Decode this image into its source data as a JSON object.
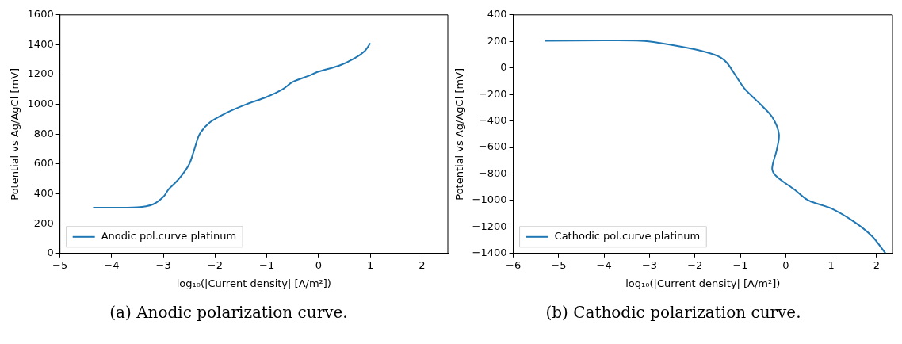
{
  "chart_data": [
    {
      "type": "line",
      "xlabel": "log₁₀(|Current density| [A/m²])",
      "ylabel": "Potential vs Ag/AgCl [mV]",
      "annotations": [
        "(a) Anodic polarization curve."
      ],
      "xlim": [
        -5,
        2.5
      ],
      "xticks": [
        -5,
        -4,
        -3,
        -2,
        -1,
        0,
        1,
        2
      ],
      "ylim": [
        0,
        1600
      ],
      "yticks": [
        0,
        200,
        400,
        600,
        800,
        1000,
        1200,
        1400,
        1600
      ],
      "grid": false,
      "legend": "bottom left",
      "marker": "none",
      "series": [
        {
          "name": "Anodic pol.curve platinum",
          "color": "#1f77b4",
          "x": [
            -4.36,
            -3.5,
            -3.2,
            -3.0,
            -2.9,
            -2.7,
            -2.5,
            -2.4,
            -2.3,
            -2.1,
            -1.8,
            -1.4,
            -1.0,
            -0.7,
            -0.5,
            -0.2,
            0,
            0.4,
            0.7,
            0.9,
            1.0
          ],
          "values": [
            307,
            310,
            330,
            380,
            430,
            500,
            600,
            700,
            800,
            880,
            940,
            1000,
            1050,
            1100,
            1150,
            1190,
            1220,
            1260,
            1310,
            1360,
            1410
          ]
        }
      ]
    },
    {
      "type": "line",
      "xlabel": "log₁₀(|Current density| [A/m²])",
      "ylabel": "Potential vs Ag/AgCl [mV]",
      "annotations": [
        "(b) Cathodic polarization curve."
      ],
      "xlim": [
        -6,
        2.35
      ],
      "xticks": [
        -6,
        -5,
        -4,
        -3,
        -2,
        -1,
        0,
        1,
        2
      ],
      "ylim": [
        -1400,
        400
      ],
      "yticks": [
        -1400,
        -1200,
        -1000,
        -800,
        -600,
        -400,
        -200,
        0,
        200,
        400
      ],
      "grid": false,
      "legend": "bottom left",
      "marker": "none",
      "series": [
        {
          "name": "Cathodic pol.curve platinum",
          "color": "#1f77b4",
          "x": [
            -5.3,
            -4,
            -3.2,
            -2.8,
            -2.0,
            -1.5,
            -1.3,
            -1.1,
            -0.9,
            -0.6,
            -0.3,
            -0.15,
            -0.2,
            -0.3,
            -0.2,
            0.2,
            0.5,
            1.0,
            1.5,
            1.9,
            2.2
          ],
          "values": [
            205,
            207,
            205,
            190,
            140,
            90,
            40,
            -60,
            -160,
            -260,
            -370,
            -500,
            -620,
            -760,
            -820,
            -920,
            -1000,
            -1060,
            -1160,
            -1270,
            -1400
          ]
        }
      ]
    }
  ]
}
